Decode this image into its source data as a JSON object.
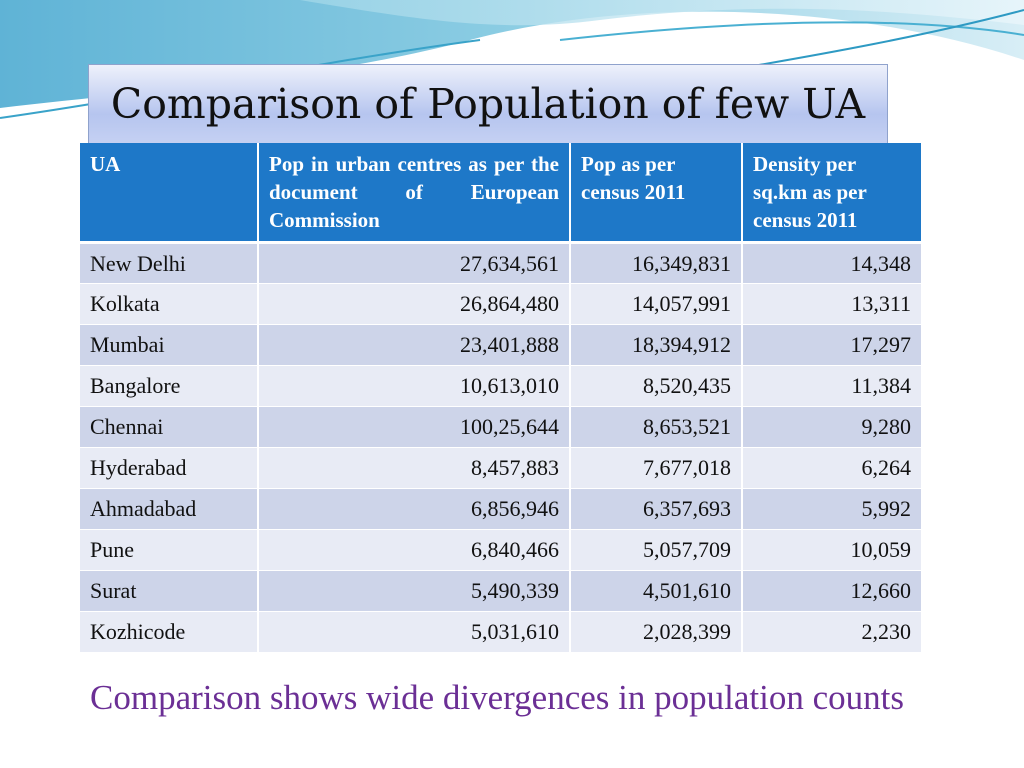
{
  "slide": {
    "title": "Comparison of Population of few UA",
    "caption": "Comparison shows wide divergences in population counts"
  },
  "table": {
    "headers": [
      "UA",
      "Pop in urban centres as per the document of European Commission",
      "Pop as per census 2011",
      "Density per sq.km as per census 2011"
    ],
    "rows": [
      [
        "New Delhi",
        "27,634,561",
        "16,349,831",
        "14,348"
      ],
      [
        "Kolkata",
        "26,864,480",
        "14,057,991",
        "13,311"
      ],
      [
        "Mumbai",
        "23,401,888",
        "18,394,912",
        "17,297"
      ],
      [
        "Bangalore",
        "10,613,010",
        "8,520,435",
        "11,384"
      ],
      [
        "Chennai",
        "100,25,644",
        "8,653,521",
        "9,280"
      ],
      [
        "Hyderabad",
        "8,457,883",
        "7,677,018",
        "6,264"
      ],
      [
        "Ahmadabad",
        "6,856,946",
        "6,357,693",
        "5,992"
      ],
      [
        "Pune",
        "6,840,466",
        "5,057,709",
        "10,059"
      ],
      [
        "Surat",
        "5,490,339",
        "4,501,610",
        "12,660"
      ],
      [
        "Kozhicode",
        "5,031,610",
        "2,028,399",
        "2,230"
      ]
    ]
  },
  "colors": {
    "header_bg": "#1e78c8",
    "row_dark": "#cdd4e9",
    "row_light": "#e8ebf5",
    "caption": "#6b2f95"
  }
}
